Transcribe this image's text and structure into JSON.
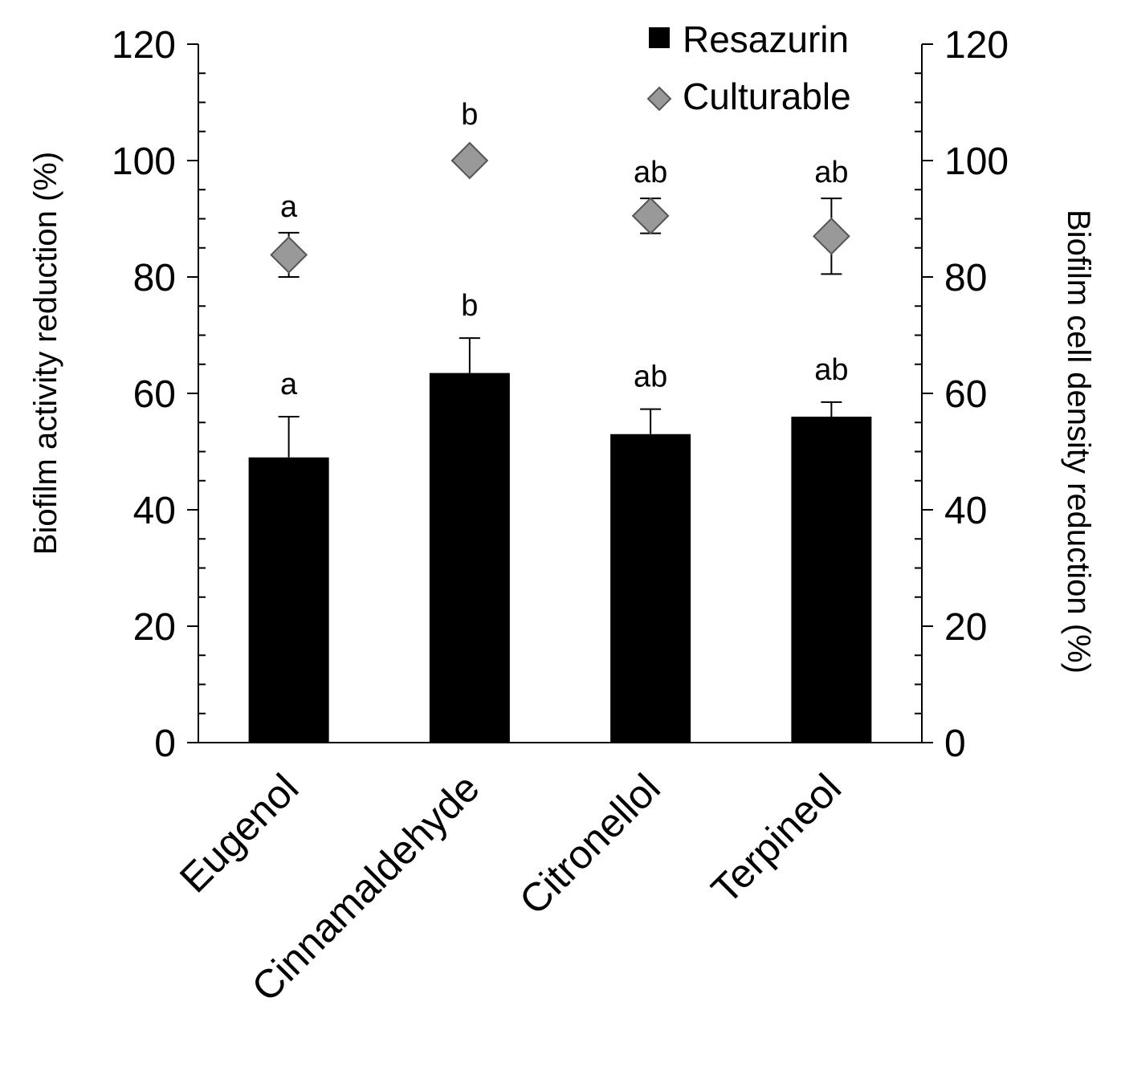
{
  "chart_data": {
    "type": "bar",
    "categories": [
      "Eugenol",
      "Cinnamaldehyde",
      "Citronellol",
      "Terpineol"
    ],
    "series": [
      {
        "name": "Resazurin",
        "kind": "bar",
        "axis": "left",
        "color": "#000000",
        "values": [
          49,
          63.5,
          53,
          56
        ],
        "error": [
          7,
          6,
          4.3,
          2.5
        ],
        "labels": [
          "a",
          "b",
          "ab",
          "ab"
        ]
      },
      {
        "name": "Culturable",
        "kind": "scatter",
        "marker": "diamond",
        "axis": "right",
        "color": "#999999",
        "values": [
          83.8,
          100,
          90.5,
          87
        ],
        "error": [
          3.8,
          0,
          3.0,
          6.5
        ],
        "labels": [
          "a",
          "b",
          "ab",
          "ab"
        ]
      }
    ],
    "ylabel": "Biofilm activity reduction (%)",
    "y2label": "Biofilm cell density reduction (%)",
    "ylim": [
      0,
      120
    ],
    "y2lim": [
      0,
      120
    ],
    "yticks": [
      "0",
      "20",
      "40",
      "60",
      "80",
      "100",
      "120"
    ],
    "y2ticks": [
      "0",
      "20",
      "40",
      "60",
      "80",
      "100",
      "120"
    ],
    "legend_position": "top-right",
    "grid": false
  }
}
